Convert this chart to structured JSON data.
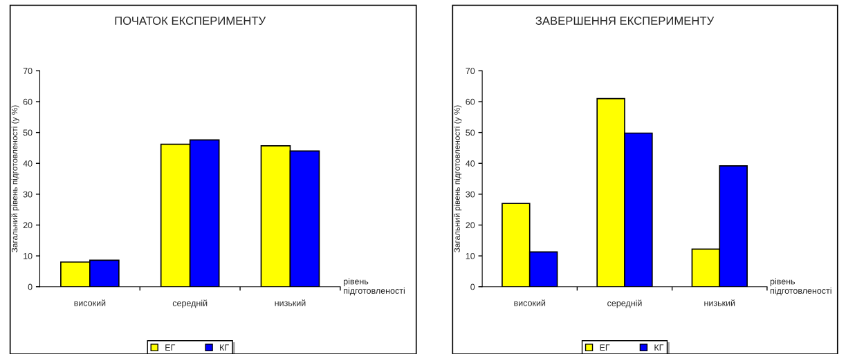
{
  "chart_data": [
    {
      "type": "bar",
      "title": "ПОЧАТОК ЕКСПЕРИМЕНТУ",
      "ylabel": "Загальний рівень підготовленості (у %)",
      "xlabel": "рівень\nпідготовленості",
      "categories": [
        "високий",
        "середній",
        "низький"
      ],
      "series": [
        {
          "name": "ЕГ",
          "color": "#ffff00",
          "values": [
            8.0,
            46.2,
            45.7
          ]
        },
        {
          "name": "КГ",
          "color": "#0000ff",
          "values": [
            8.6,
            47.6,
            44.0
          ]
        }
      ],
      "ylim": [
        0,
        70
      ],
      "yticks": [
        0,
        10,
        20,
        30,
        40,
        50,
        60,
        70
      ],
      "grid": false,
      "legend": "bottom"
    },
    {
      "type": "bar",
      "title": "ЗАВЕРШЕННЯ ЕКСПЕРИМЕНТУ",
      "ylabel": "Загальний рівень підготовленості (у %)",
      "xlabel": "рівень\nпідготовленості",
      "categories": [
        "високий",
        "середній",
        "низький"
      ],
      "series": [
        {
          "name": "ЕГ",
          "color": "#ffff00",
          "values": [
            27.0,
            61.0,
            12.2
          ]
        },
        {
          "name": "КГ",
          "color": "#0000ff",
          "values": [
            11.3,
            49.8,
            39.2
          ]
        }
      ],
      "ylim": [
        0,
        70
      ],
      "yticks": [
        0,
        10,
        20,
        30,
        40,
        50,
        60,
        70
      ],
      "grid": false,
      "legend": "bottom"
    }
  ]
}
